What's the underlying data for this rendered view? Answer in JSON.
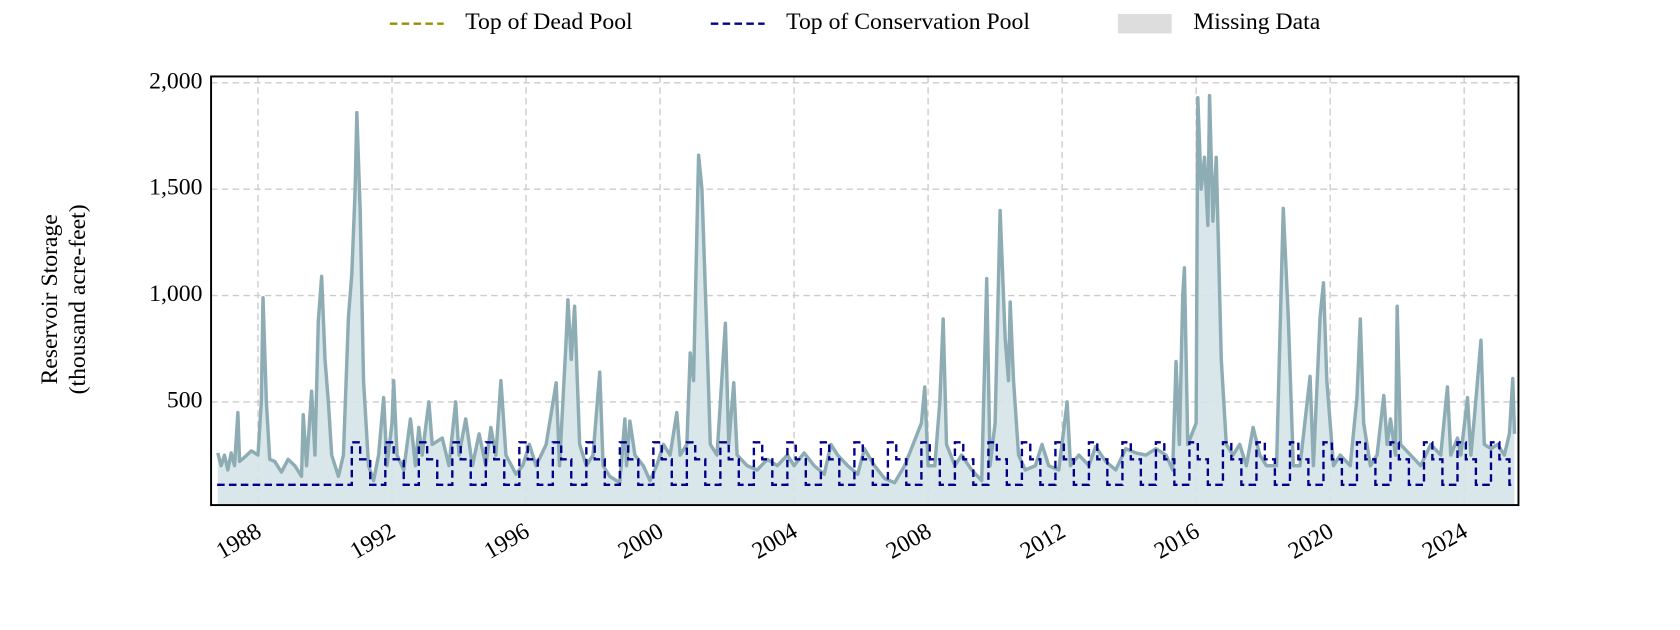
{
  "chart_data": {
    "type": "line",
    "y_label": [
      "Reservoir Storage",
      "(thousand acre-feet)"
    ],
    "xlim": [
      1986.6,
      2025.62
    ],
    "xticks": [
      1988,
      1992,
      1996,
      2000,
      2004,
      2008,
      2012,
      2016,
      2020,
      2024
    ],
    "ylim": [
      15,
      2030
    ],
    "yticks": [
      500,
      {
        "value": 1000,
        "label": "1,000"
      },
      {
        "value": 1500,
        "label": "1,500"
      },
      {
        "value": 2000,
        "label": "2,000"
      }
    ],
    "grid": true,
    "series": [
      {
        "color": "#8eacb3",
        "fill": "#d6e4e8",
        "x": [
          1986.8,
          1986.9,
          1987.0,
          1987.1,
          1987.2,
          1987.3,
          1987.4,
          1987.45,
          1987.6,
          1987.8,
          1988.0,
          1988.1,
          1988.15,
          1988.25,
          1988.35,
          1988.5,
          1988.7,
          1988.9,
          1989.1,
          1989.3,
          1989.35,
          1989.45,
          1989.6,
          1989.7,
          1989.8,
          1989.9,
          1990.0,
          1990.1,
          1990.2,
          1990.4,
          1990.55,
          1990.7,
          1990.8,
          1990.9,
          1990.95,
          1991.05,
          1991.15,
          1991.3,
          1991.45,
          1991.6,
          1991.75,
          1991.85,
          1992.0,
          1992.05,
          1992.15,
          1992.35,
          1992.55,
          1992.7,
          1992.8,
          1992.9,
          1993.1,
          1993.2,
          1993.5,
          1993.7,
          1993.9,
          1994.0,
          1994.2,
          1994.4,
          1994.6,
          1994.8,
          1994.95,
          1995.1,
          1995.25,
          1995.4,
          1995.7,
          1995.9,
          1996.1,
          1996.3,
          1996.6,
          1996.9,
          1997.0,
          1997.2,
          1997.25,
          1997.35,
          1997.45,
          1997.6,
          1997.8,
          1998.0,
          1998.2,
          1998.3,
          1998.5,
          1998.8,
          1998.95,
          1999.0,
          1999.1,
          1999.25,
          1999.5,
          1999.7,
          1999.9,
          2000.1,
          2000.3,
          2000.5,
          2000.6,
          2000.8,
          2000.9,
          2001.0,
          2001.15,
          2001.25,
          2001.4,
          2001.5,
          2001.7,
          2001.95,
          2002.05,
          2002.2,
          2002.3,
          2002.6,
          2002.9,
          2003.2,
          2003.5,
          2003.8,
          2004.0,
          2004.3,
          2004.6,
          2004.9,
          2005.1,
          2005.3,
          2005.6,
          2005.9,
          2006.1,
          2006.4,
          2006.7,
          2007.0,
          2007.3,
          2007.5,
          2007.8,
          2007.9,
          2008.0,
          2008.2,
          2008.35,
          2008.45,
          2008.55,
          2008.8,
          2009.0,
          2009.3,
          2009.6,
          2009.75,
          2009.85,
          2010.0,
          2010.15,
          2010.3,
          2010.4,
          2010.45,
          2010.55,
          2010.7,
          2010.9,
          2011.2,
          2011.4,
          2011.6,
          2011.9,
          2012.15,
          2012.25,
          2012.5,
          2012.8,
          2013.0,
          2013.3,
          2013.6,
          2013.9,
          2014.2,
          2014.5,
          2014.8,
          2015.1,
          2015.3,
          2015.4,
          2015.5,
          2015.6,
          2015.65,
          2015.75,
          2016.0,
          2016.05,
          2016.15,
          2016.25,
          2016.35,
          2016.4,
          2016.5,
          2016.6,
          2016.75,
          2016.9,
          2017.1,
          2017.3,
          2017.5,
          2017.7,
          2017.9,
          2018.1,
          2018.4,
          2018.6,
          2018.75,
          2018.9,
          2019.1,
          2019.4,
          2019.5,
          2019.7,
          2019.8,
          2019.9,
          2020.1,
          2020.3,
          2020.6,
          2020.8,
          2020.9,
          2021.0,
          2021.2,
          2021.4,
          2021.6,
          2021.7,
          2021.8,
          2021.95,
          2022.0,
          2022.1,
          2022.4,
          2022.7,
          2023.0,
          2023.3,
          2023.5,
          2023.6,
          2023.8,
          2023.9,
          2024.1,
          2024.2,
          2024.3,
          2024.5,
          2024.6,
          2024.8,
          2025.0,
          2025.2,
          2025.35,
          2025.45,
          2025.5
        ],
        "values": [
          260,
          200,
          250,
          180,
          260,
          200,
          450,
          220,
          240,
          270,
          250,
          500,
          990,
          500,
          230,
          220,
          170,
          230,
          200,
          150,
          440,
          200,
          550,
          250,
          880,
          1090,
          700,
          500,
          250,
          150,
          250,
          900,
          1100,
          1500,
          1860,
          1400,
          600,
          200,
          130,
          250,
          520,
          200,
          400,
          600,
          250,
          180,
          420,
          200,
          380,
          250,
          500,
          300,
          330,
          200,
          500,
          250,
          420,
          200,
          350,
          200,
          380,
          250,
          600,
          250,
          160,
          200,
          300,
          200,
          300,
          590,
          200,
          800,
          980,
          700,
          950,
          300,
          200,
          250,
          640,
          200,
          150,
          120,
          420,
          200,
          410,
          250,
          200,
          130,
          200,
          300,
          250,
          450,
          250,
          300,
          730,
          600,
          1660,
          1500,
          800,
          300,
          250,
          870,
          300,
          590,
          250,
          200,
          180,
          230,
          200,
          250,
          200,
          260,
          200,
          160,
          300,
          250,
          200,
          160,
          280,
          200,
          140,
          120,
          200,
          280,
          400,
          570,
          200,
          200,
          500,
          890,
          300,
          200,
          250,
          180,
          130,
          1080,
          200,
          400,
          1400,
          800,
          600,
          970,
          600,
          250,
          180,
          200,
          300,
          200,
          180,
          500,
          200,
          250,
          200,
          290,
          220,
          180,
          280,
          260,
          250,
          280,
          250,
          180,
          690,
          300,
          1000,
          1130,
          300,
          400,
          1930,
          1500,
          1650,
          1330,
          1940,
          1350,
          1650,
          700,
          300,
          250,
          300,
          200,
          380,
          250,
          200,
          200,
          1410,
          900,
          200,
          200,
          620,
          200,
          900,
          1060,
          600,
          200,
          250,
          200,
          520,
          890,
          400,
          200,
          250,
          530,
          300,
          420,
          250,
          950,
          300,
          250,
          200,
          300,
          250,
          570,
          250,
          330,
          250,
          520,
          250,
          420,
          790,
          300,
          280,
          300,
          250,
          350,
          610,
          350
        ]
      },
      {
        "name": "Top of Dead Pool",
        "color": "#9a8f00",
        "style": "dashed",
        "x": [],
        "values": []
      },
      {
        "name": "Top of Conservation Pool",
        "color": "#00008b",
        "style": "dashed-step",
        "x": [
          1986.78,
          1990.8,
          1991.05,
          1991.35,
          1991.8,
          1992.05,
          1992.35,
          1992.8,
          1993.05,
          1993.35,
          1993.8,
          1994.05,
          1994.35,
          1994.8,
          1995.05,
          1995.35,
          1995.8,
          1996.05,
          1996.35,
          1996.8,
          1997.05,
          1997.35,
          1997.8,
          1998.05,
          1998.35,
          1998.8,
          1999.05,
          1999.35,
          1999.8,
          2000.05,
          2000.35,
          2000.8,
          2001.05,
          2001.35,
          2001.8,
          2002.05,
          2002.35,
          2002.8,
          2003.05,
          2003.35,
          2003.8,
          2004.05,
          2004.35,
          2004.8,
          2005.05,
          2005.35,
          2005.8,
          2006.05,
          2006.35,
          2006.8,
          2007.05,
          2007.35,
          2007.8,
          2008.05,
          2008.35,
          2008.8,
          2009.05,
          2009.35,
          2009.8,
          2010.05,
          2010.35,
          2010.8,
          2011.05,
          2011.35,
          2011.8,
          2012.05,
          2012.35,
          2012.8,
          2013.05,
          2013.35,
          2013.8,
          2014.05,
          2014.35,
          2014.8,
          2015.05,
          2015.35,
          2015.8,
          2016.05,
          2016.35,
          2016.8,
          2017.05,
          2017.35,
          2017.8,
          2018.05,
          2018.35,
          2018.8,
          2019.05,
          2019.35,
          2019.8,
          2020.05,
          2020.35,
          2020.8,
          2021.05,
          2021.35,
          2021.8,
          2022.05,
          2022.35,
          2022.8,
          2023.05,
          2023.35,
          2023.8,
          2024.05,
          2024.35,
          2024.8,
          2025.05,
          2025.35,
          2025.5
        ],
        "values": [
          110,
          310,
          230,
          110,
          310,
          230,
          110,
          310,
          230,
          110,
          310,
          230,
          110,
          310,
          230,
          110,
          310,
          230,
          110,
          310,
          230,
          110,
          310,
          230,
          110,
          310,
          230,
          110,
          310,
          230,
          110,
          310,
          230,
          110,
          310,
          230,
          110,
          310,
          230,
          110,
          310,
          230,
          110,
          310,
          230,
          110,
          310,
          230,
          110,
          310,
          230,
          110,
          310,
          230,
          110,
          310,
          230,
          110,
          310,
          230,
          110,
          310,
          230,
          110,
          310,
          230,
          110,
          310,
          230,
          110,
          310,
          230,
          110,
          310,
          230,
          110,
          310,
          230,
          110,
          310,
          230,
          110,
          310,
          230,
          110,
          310,
          230,
          110,
          310,
          230,
          110,
          310,
          230,
          110,
          310,
          230,
          110,
          310,
          230,
          110,
          310,
          230,
          110,
          310,
          230,
          110,
          110
        ]
      }
    ],
    "missing_data": {
      "name": "Missing Data",
      "color": "#dddddd",
      "ranges": []
    }
  }
}
